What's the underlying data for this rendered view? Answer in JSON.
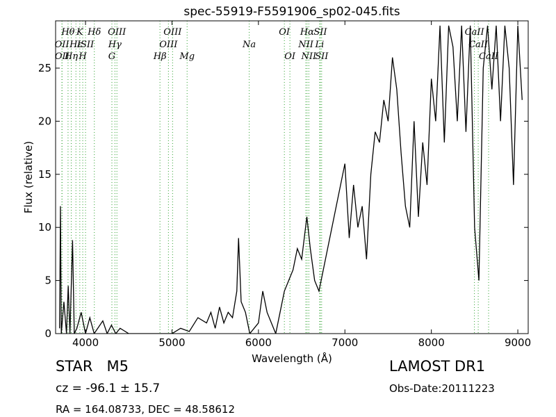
{
  "chart_data": {
    "type": "line",
    "title": "spec-55919-F5591906_sp02-045.fits",
    "x_label": "Wavelength (Å)",
    "y_label": "Flux (relative)",
    "xlim": [
      3654,
      9120
    ],
    "ylim": [
      0,
      29.45
    ],
    "xticks": [
      4000,
      5000,
      6000,
      7000,
      8000,
      9000
    ],
    "yticks": [
      0,
      5,
      10,
      15,
      20,
      25
    ],
    "x": [
      3700,
      3710,
      3720,
      3750,
      3780,
      3800,
      3820,
      3850,
      3870,
      3900,
      3950,
      4000,
      4050,
      4100,
      4200,
      4250,
      4300,
      4350,
      4400,
      4500,
      5000,
      5100,
      5200,
      5300,
      5400,
      5450,
      5500,
      5550,
      5600,
      5650,
      5700,
      5750,
      5770,
      5800,
      5850,
      5900,
      6000,
      6050,
      6100,
      6200,
      6250,
      6300,
      6350,
      6400,
      6450,
      6500,
      6560,
      6600,
      6650,
      6700,
      6750,
      6800,
      6850,
      6900,
      6950,
      7000,
      7050,
      7100,
      7150,
      7200,
      7250,
      7300,
      7350,
      7400,
      7450,
      7500,
      7550,
      7600,
      7650,
      7700,
      7750,
      7800,
      7850,
      7900,
      7950,
      8000,
      8050,
      8100,
      8150,
      8200,
      8250,
      8300,
      8350,
      8400,
      8450,
      8500,
      8550,
      8600,
      8650,
      8700,
      8750,
      8800,
      8850,
      8900,
      8950,
      9000,
      9050
    ],
    "series": [
      {
        "color": "#000000",
        "values": [
          0.5,
          12,
          0,
          3,
          0,
          4.5,
          0,
          8.8,
          0,
          0.5,
          2,
          0,
          1.5,
          0,
          1.2,
          0,
          0.8,
          0,
          0.5,
          0,
          0,
          0.5,
          0.2,
          1.5,
          1,
          2,
          0.5,
          2.5,
          1,
          2,
          1.5,
          4,
          9,
          3,
          2,
          0,
          1,
          4,
          2,
          0,
          2,
          4,
          5,
          6,
          8,
          7,
          11,
          8,
          5,
          4,
          6,
          8,
          10,
          12,
          14,
          16,
          9,
          14,
          10,
          12,
          7,
          15,
          19,
          18,
          22,
          20,
          26,
          23,
          17,
          12,
          10,
          20,
          11,
          18,
          14,
          24,
          20,
          29,
          18,
          29,
          27,
          20,
          29,
          19,
          29,
          10,
          5,
          25,
          29,
          23,
          29,
          20,
          29,
          25,
          14,
          29,
          22
        ]
      }
    ],
    "spectral_lines": [
      [
        {
          "label": "Hθ",
          "wavelength": 3798
        },
        {
          "label": "K",
          "wavelength": 3934
        },
        {
          "label": "Hδ",
          "wavelength": 4102
        },
        {
          "label": "OIII",
          "wavelength": 4363
        },
        {
          "label": "OIII",
          "wavelength": 5007
        },
        {
          "label": "OI",
          "wavelength": 6300
        },
        {
          "label": "Hα",
          "wavelength": 6563
        },
        {
          "label": "SII",
          "wavelength": 6716
        },
        {
          "label": "CaII",
          "wavelength": 8498
        }
      ],
      [
        {
          "label": "OII",
          "wavelength": 3727
        },
        {
          "label": "Hε",
          "wavelength": 3889
        },
        {
          "label": "ISII",
          "wavelength": 4000
        },
        {
          "label": "Hγ",
          "wavelength": 4340
        },
        {
          "label": "OIII",
          "wavelength": 4959
        },
        {
          "label": "Na",
          "wavelength": 5893
        },
        {
          "label": "NII",
          "wavelength": 6548
        },
        {
          "label": "Li",
          "wavelength": 6708
        },
        {
          "label": "CaII",
          "wavelength": 8542
        }
      ],
      [
        {
          "label": "OII",
          "wavelength": 3729
        },
        {
          "label": "Hη",
          "wavelength": 3835
        },
        {
          "label": "H",
          "wavelength": 3968
        },
        {
          "label": "G",
          "wavelength": 4305
        },
        {
          "label": "Hβ",
          "wavelength": 4861
        },
        {
          "label": "Mg",
          "wavelength": 5175
        },
        {
          "label": "OI",
          "wavelength": 6364
        },
        {
          "label": "NII",
          "wavelength": 6583
        },
        {
          "label": "SII",
          "wavelength": 6731
        },
        {
          "label": "CaII",
          "wavelength": 8662
        }
      ]
    ],
    "annotations": {
      "object_class": "STAR   M5",
      "survey": "LAMOST DR1",
      "redshift": "cz = -96.1 ± 15.7",
      "obs_date": "Obs-Date:20111223",
      "coordinates": "RA = 164.08733, DEC = 48.58612"
    }
  }
}
